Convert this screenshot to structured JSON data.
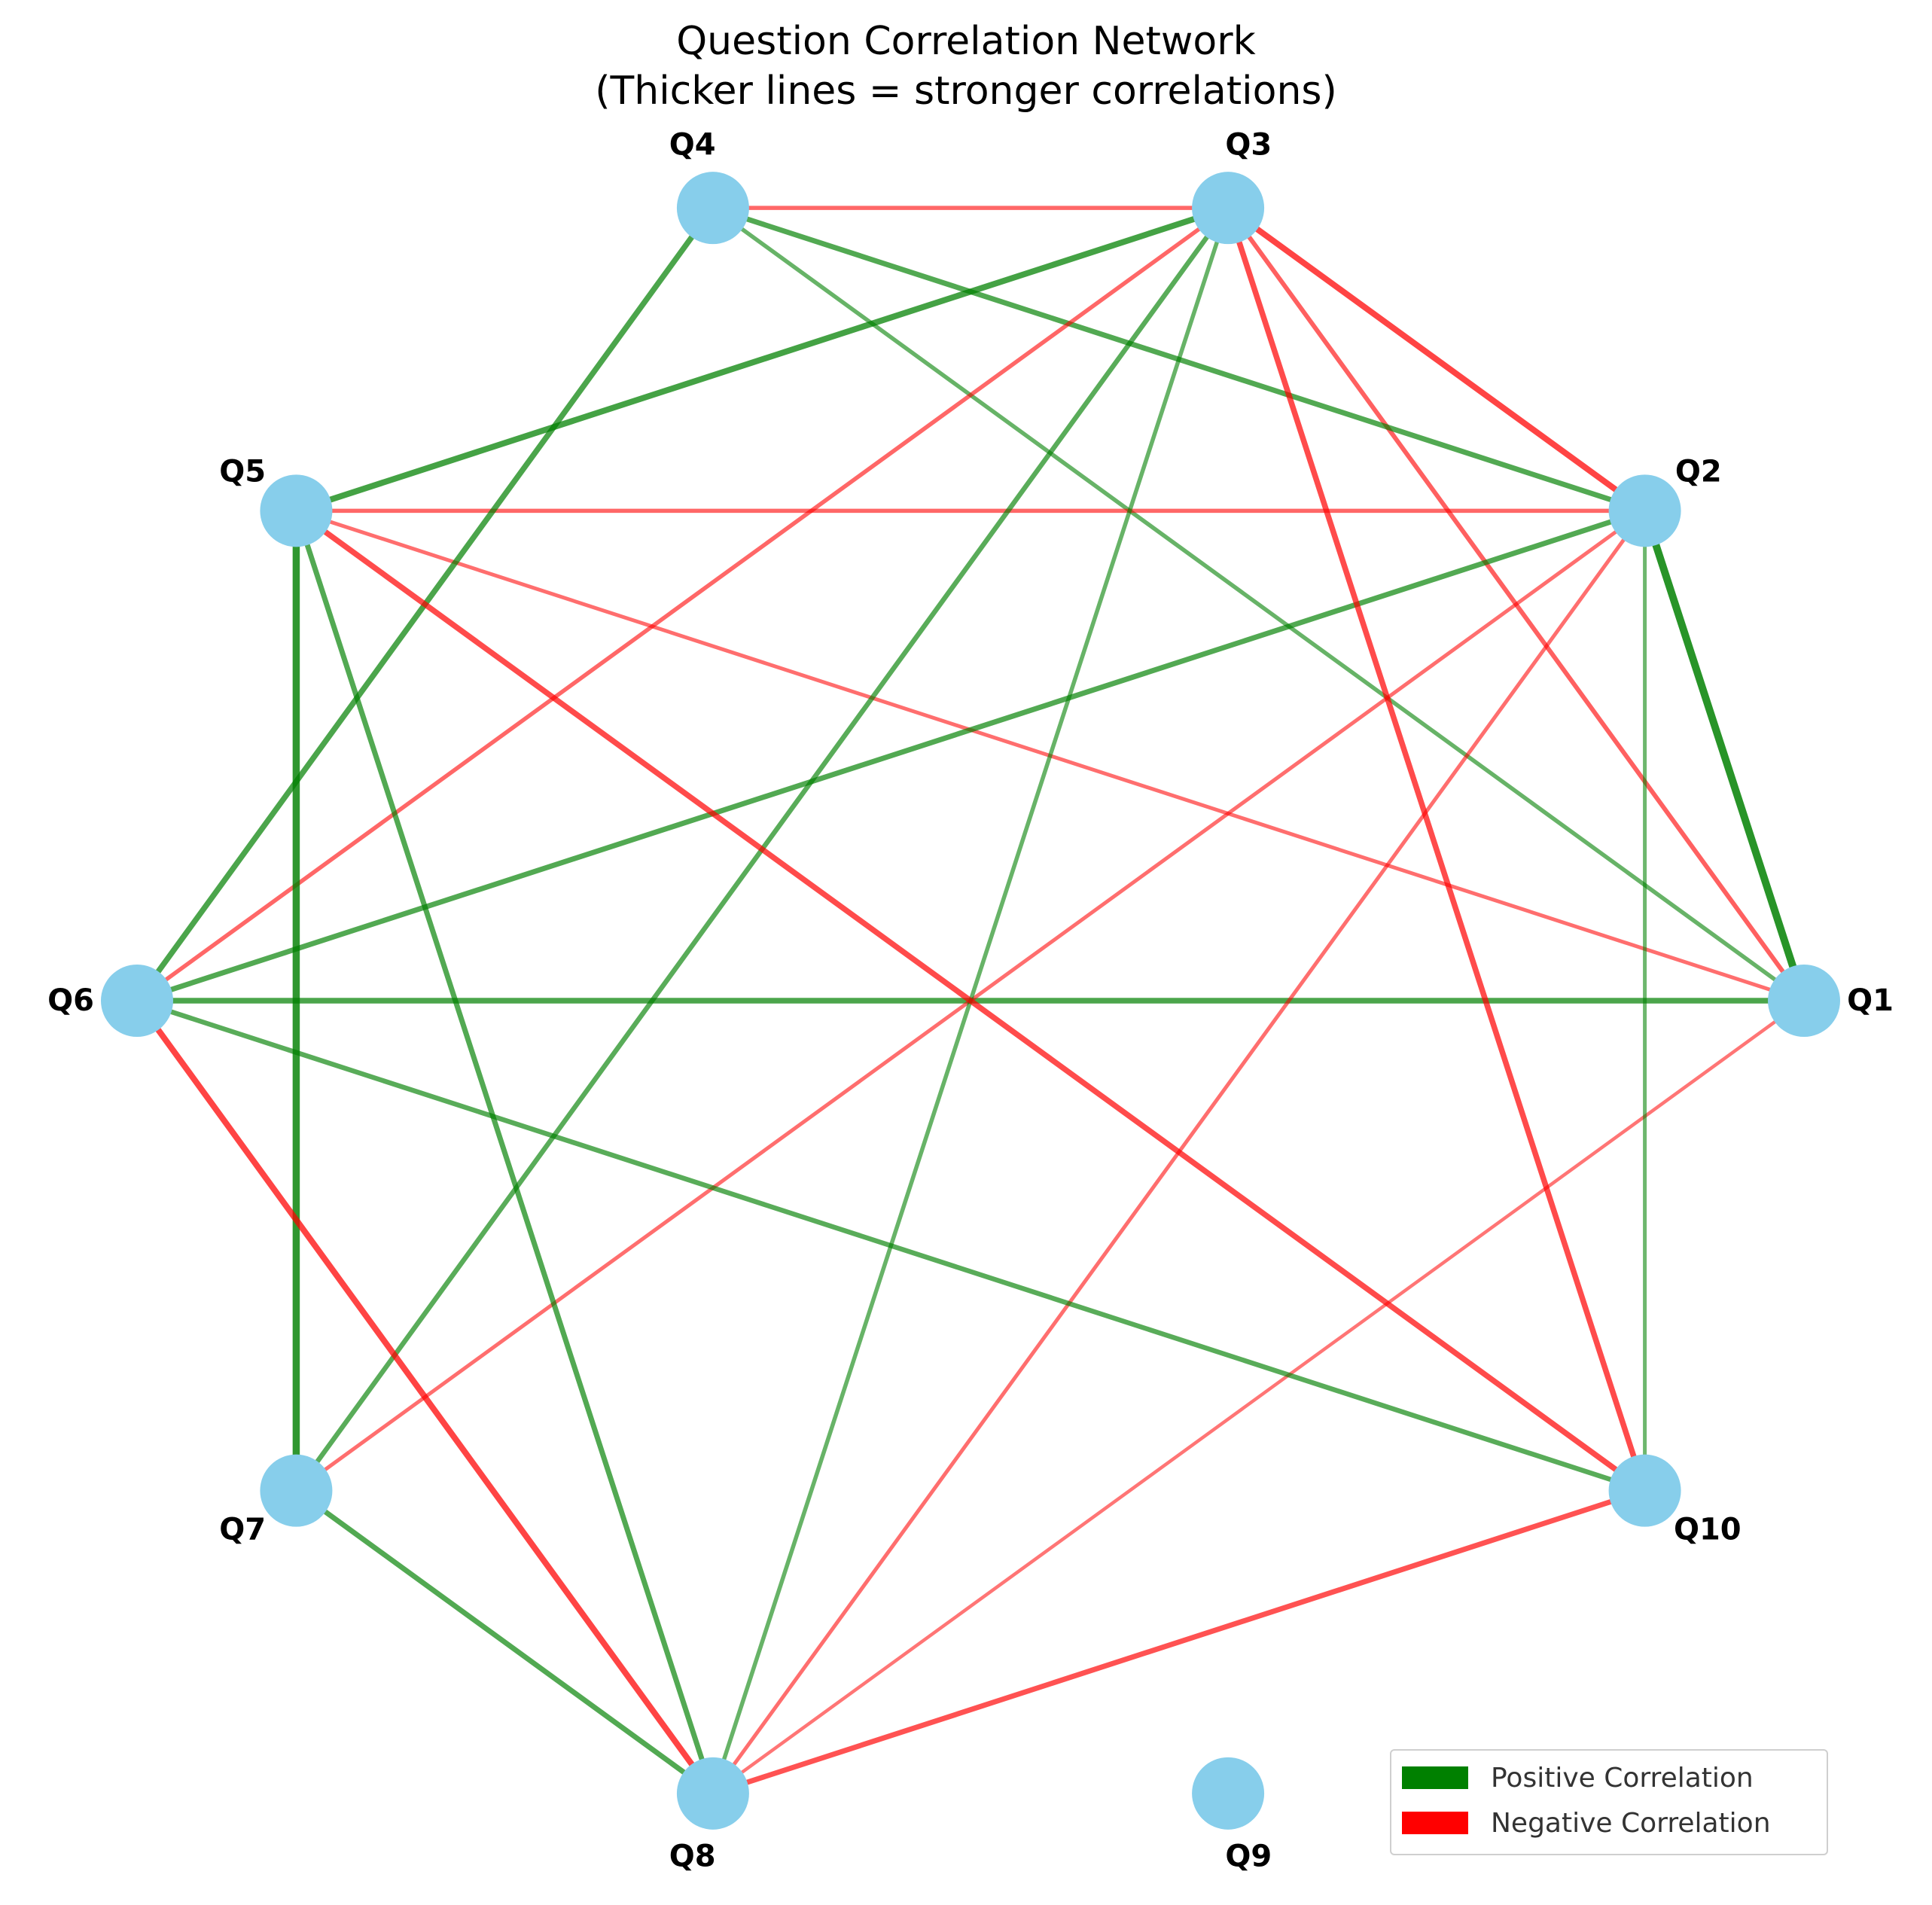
{
  "title_lines": [
    "Question Correlation Network",
    "(Thicker lines = stronger correlations)"
  ],
  "node_color": "#87CEEB",
  "positive_color": "#008000",
  "negative_color": "#ff0000",
  "legend": {
    "positive_label": "Positive Correlation",
    "negative_label": "Negative Correlation",
    "placement": "lower-right"
  },
  "nodes": [
    "Q1",
    "Q2",
    "Q3",
    "Q4",
    "Q5",
    "Q6",
    "Q7",
    "Q8",
    "Q9",
    "Q10"
  ],
  "edges": [
    {
      "source": "Q1",
      "target": "Q2",
      "sign": "positive",
      "strength": 0.9
    },
    {
      "source": "Q1",
      "target": "Q3",
      "sign": "negative",
      "strength": 0.5
    },
    {
      "source": "Q1",
      "target": "Q4",
      "sign": "positive",
      "strength": 0.45
    },
    {
      "source": "Q1",
      "target": "Q5",
      "sign": "negative",
      "strength": 0.4
    },
    {
      "source": "Q1",
      "target": "Q6",
      "sign": "positive",
      "strength": 0.65
    },
    {
      "source": "Q1",
      "target": "Q8",
      "sign": "negative",
      "strength": 0.35
    },
    {
      "source": "Q2",
      "target": "Q3",
      "sign": "negative",
      "strength": 0.7
    },
    {
      "source": "Q2",
      "target": "Q4",
      "sign": "positive",
      "strength": 0.6
    },
    {
      "source": "Q2",
      "target": "Q5",
      "sign": "negative",
      "strength": 0.45
    },
    {
      "source": "Q2",
      "target": "Q6",
      "sign": "positive",
      "strength": 0.6
    },
    {
      "source": "Q2",
      "target": "Q7",
      "sign": "negative",
      "strength": 0.4
    },
    {
      "source": "Q2",
      "target": "Q8",
      "sign": "negative",
      "strength": 0.4
    },
    {
      "source": "Q2",
      "target": "Q10",
      "sign": "positive",
      "strength": 0.4
    },
    {
      "source": "Q3",
      "target": "Q4",
      "sign": "negative",
      "strength": 0.45
    },
    {
      "source": "Q3",
      "target": "Q5",
      "sign": "positive",
      "strength": 0.7
    },
    {
      "source": "Q3",
      "target": "Q6",
      "sign": "negative",
      "strength": 0.45
    },
    {
      "source": "Q3",
      "target": "Q7",
      "sign": "positive",
      "strength": 0.55
    },
    {
      "source": "Q3",
      "target": "Q8",
      "sign": "positive",
      "strength": 0.45
    },
    {
      "source": "Q3",
      "target": "Q10",
      "sign": "negative",
      "strength": 0.65
    },
    {
      "source": "Q4",
      "target": "Q6",
      "sign": "positive",
      "strength": 0.65
    },
    {
      "source": "Q5",
      "target": "Q7",
      "sign": "positive",
      "strength": 0.85
    },
    {
      "source": "Q5",
      "target": "Q8",
      "sign": "positive",
      "strength": 0.6
    },
    {
      "source": "Q5",
      "target": "Q10",
      "sign": "negative",
      "strength": 0.65
    },
    {
      "source": "Q6",
      "target": "Q8",
      "sign": "negative",
      "strength": 0.7
    },
    {
      "source": "Q6",
      "target": "Q10",
      "sign": "positive",
      "strength": 0.55
    },
    {
      "source": "Q7",
      "target": "Q8",
      "sign": "positive",
      "strength": 0.6
    },
    {
      "source": "Q8",
      "target": "Q10",
      "sign": "negative",
      "strength": 0.6
    }
  ]
}
